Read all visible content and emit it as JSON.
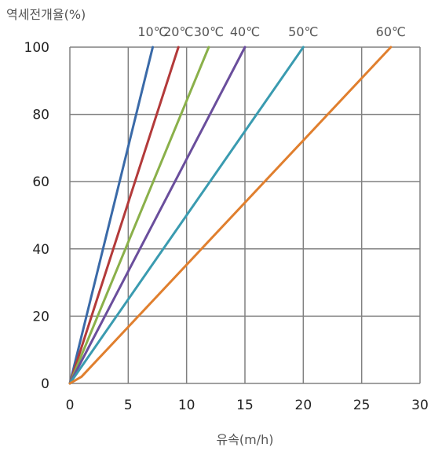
{
  "chart_data": {
    "type": "line",
    "ylabel": "역세전개율(%)",
    "xlabel": "유속(m/h)",
    "xlim": [
      0,
      30
    ],
    "ylim": [
      0,
      100
    ],
    "xticks": [
      0,
      5,
      10,
      15,
      20,
      25,
      30
    ],
    "yticks": [
      0,
      20,
      40,
      60,
      80,
      100
    ],
    "grid": true,
    "legend": "labels at top of each line",
    "series": [
      {
        "name": "10℃",
        "color": "#3a6aa8",
        "x": [
          0,
          7.1
        ],
        "y": [
          0,
          100
        ]
      },
      {
        "name": "20℃",
        "color": "#b33a3a",
        "x": [
          0,
          9.3
        ],
        "y": [
          0,
          100
        ]
      },
      {
        "name": "30℃",
        "color": "#8ab04a",
        "x": [
          0,
          11.9
        ],
        "y": [
          0,
          100
        ]
      },
      {
        "name": "40℃",
        "color": "#6a4e9c",
        "x": [
          0,
          15.0
        ],
        "y": [
          0,
          100
        ]
      },
      {
        "name": "50℃",
        "color": "#3a9bb0",
        "x": [
          0,
          20.0
        ],
        "y": [
          0,
          100
        ]
      },
      {
        "name": "60℃",
        "color": "#e07f2e",
        "x": [
          0,
          1.0,
          27.5
        ],
        "y": [
          0,
          2,
          100
        ]
      }
    ]
  }
}
